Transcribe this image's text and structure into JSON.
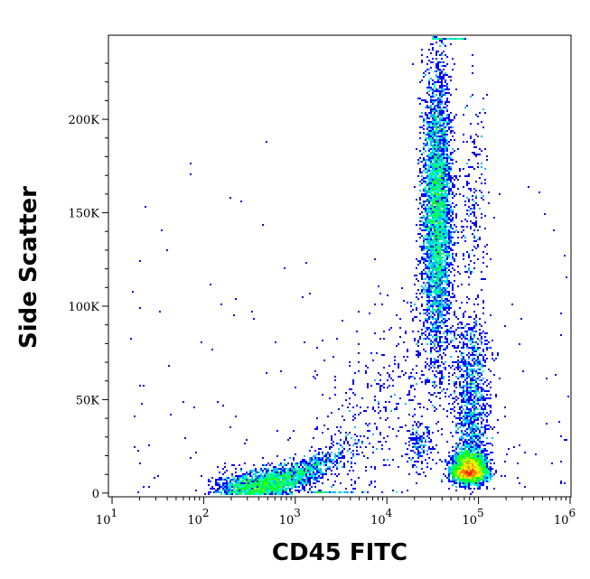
{
  "chart_data": {
    "type": "scatter",
    "subtype": "flow-cytometry density dot plot",
    "xlabel": "CD45 FITC",
    "ylabel": "Side Scatter",
    "x_scale": "log",
    "xlim": [
      10,
      1000000
    ],
    "ylim": [
      -2000,
      245000
    ],
    "x_ticks": [
      {
        "value": 10,
        "base": "10",
        "exp": "1"
      },
      {
        "value": 100,
        "base": "10",
        "exp": "2"
      },
      {
        "value": 1000,
        "base": "10",
        "exp": "3"
      },
      {
        "value": 10000,
        "base": "10",
        "exp": "4"
      },
      {
        "value": 100000,
        "base": "10",
        "exp": "5"
      },
      {
        "value": 1000000,
        "base": "10",
        "exp": "6"
      }
    ],
    "y_ticks": [
      {
        "value": 0,
        "label": "0"
      },
      {
        "value": 50000,
        "label": "50K"
      },
      {
        "value": 100000,
        "label": "100K"
      },
      {
        "value": 150000,
        "label": "150K"
      },
      {
        "value": 200000,
        "label": "200K"
      }
    ],
    "grid": false,
    "color_scale": [
      "#0000ff",
      "#00ffff",
      "#00ff00",
      "#ffff00",
      "#ff0000"
    ],
    "populations": [
      {
        "x_center": 80000,
        "y_center": 12000,
        "relative_density": "highest"
      },
      {
        "x_center": 90000,
        "y_center": 45000,
        "relative_density": "medium"
      },
      {
        "x_center": 35000,
        "y_center": 150000,
        "relative_density": "high"
      },
      {
        "x_center": 1200,
        "y_center": 11000,
        "relative_density": "high"
      },
      {
        "x_center": 22000,
        "y_center": 25000,
        "relative_density": "low"
      }
    ]
  }
}
